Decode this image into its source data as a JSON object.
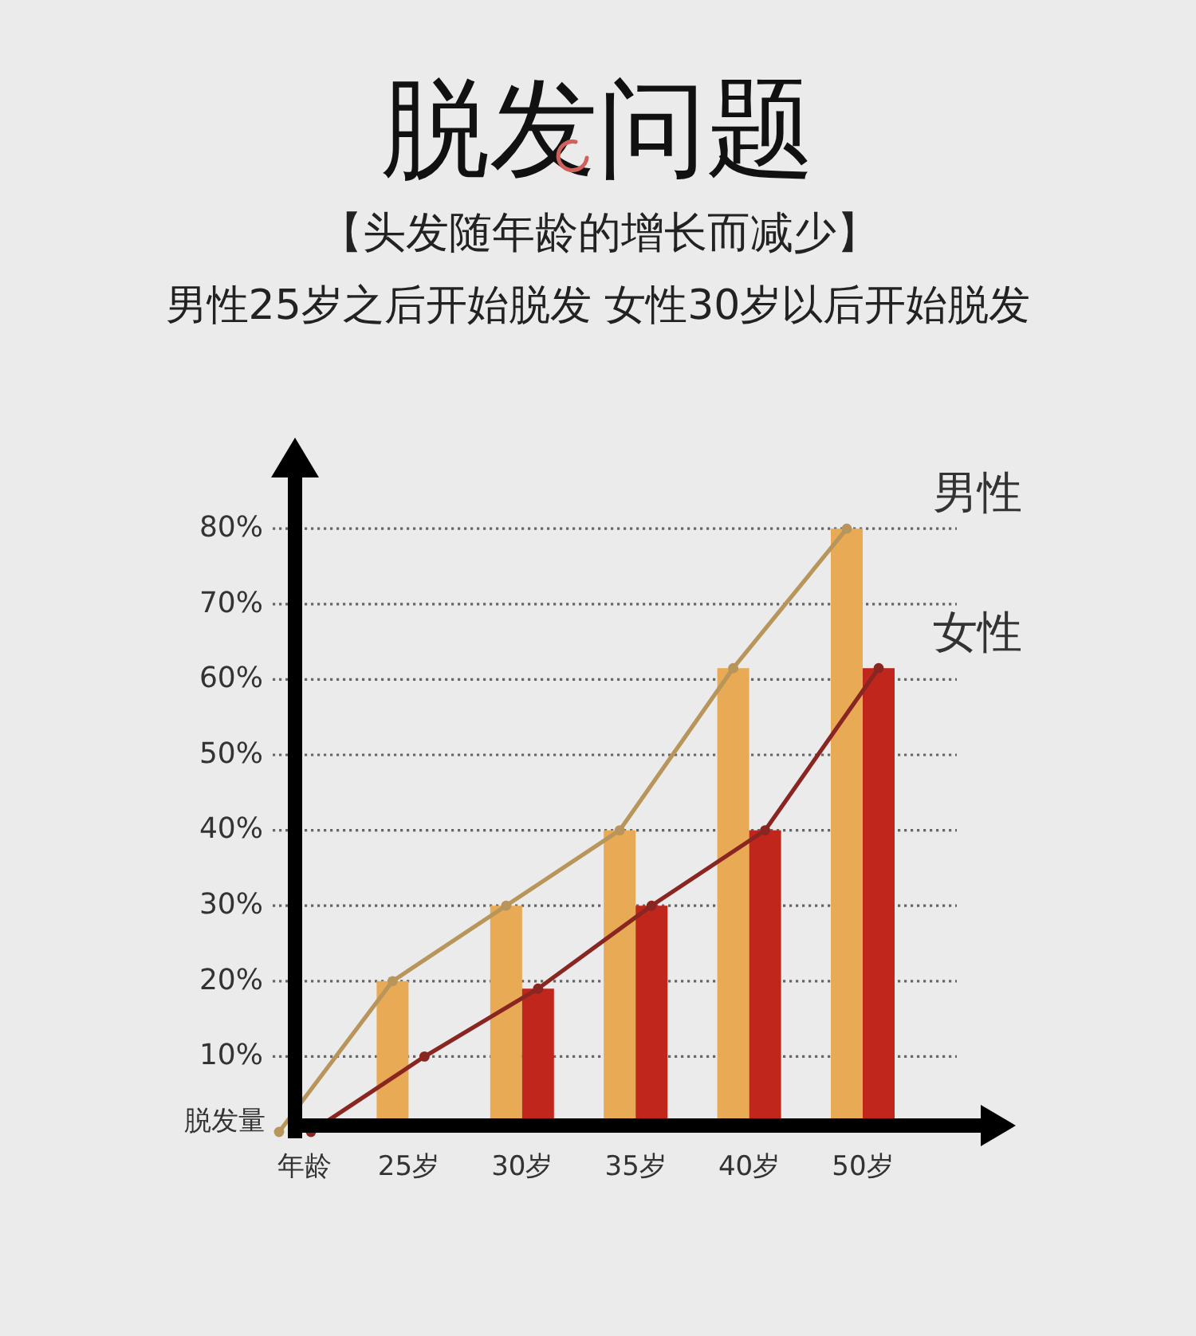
{
  "chart_data": {
    "type": "bar",
    "title": "脱发问题",
    "subtitle": "【头发随年龄的增长而减少】",
    "annotations": [
      "男性25岁之后开始脱发 女性30岁以后开始脱发"
    ],
    "xlabel": "年龄",
    "ylabel": "脱发量",
    "categories": [
      null,
      "25岁",
      "30岁",
      "35岁",
      "40岁",
      "50岁"
    ],
    "series": [
      {
        "color": "#e8aa55",
        "values": [
          null,
          20,
          30,
          40,
          61.5,
          80
        ]
      },
      {
        "color": "#c0261b",
        "values": [
          null,
          null,
          19,
          30,
          40,
          61.5
        ]
      },
      {
        "type": "line",
        "name": "男性",
        "color": "#b8955a",
        "values": [
          0,
          20,
          30,
          40,
          61.5,
          80
        ]
      },
      {
        "type": "line",
        "name": "女性",
        "color": "#8a2622",
        "values": [
          0,
          10,
          19,
          30,
          40,
          61.5
        ]
      }
    ],
    "ylim": [
      0,
      87
    ],
    "yticks": [
      {
        "value": 10,
        "label": "10%"
      },
      {
        "value": 20,
        "label": "20%"
      },
      {
        "value": 30,
        "label": "30%"
      },
      {
        "value": 40,
        "label": "40%"
      },
      {
        "value": 50,
        "label": "50%"
      },
      {
        "value": 60,
        "label": "60%"
      },
      {
        "value": 70,
        "label": "70%"
      },
      {
        "value": 80,
        "label": "80%"
      }
    ],
    "grid": "y",
    "marker": "circle"
  }
}
